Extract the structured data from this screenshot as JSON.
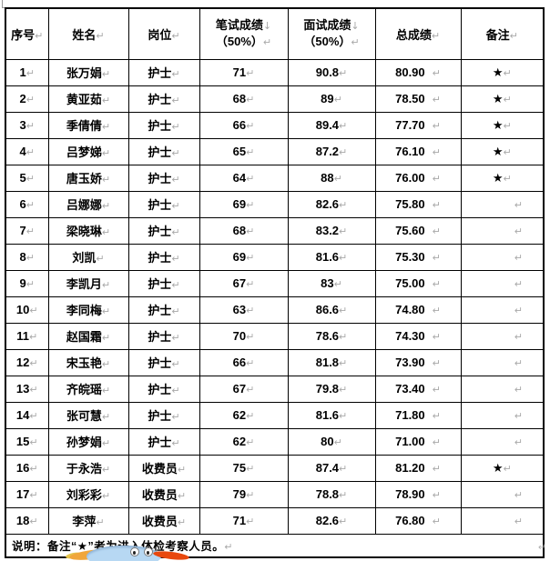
{
  "marks": {
    "paragraph": "↵",
    "line_break": "↓"
  },
  "table": {
    "header": {
      "no": "序号",
      "name": "姓名",
      "post": "岗位",
      "written_line1": "笔试成绩",
      "written_line2": "（50%）",
      "interview_line1": "面试成绩",
      "interview_line2": "（50%）",
      "total": "总成绩",
      "remark": "备注"
    },
    "rows": [
      {
        "no": "1",
        "name": "张万娟",
        "post": "护士",
        "written": "71",
        "interview": "90.8",
        "total": "80.90",
        "remark": "★"
      },
      {
        "no": "2",
        "name": "黄亚茹",
        "post": "护士",
        "written": "68",
        "interview": "89",
        "total": "78.50",
        "remark": "★"
      },
      {
        "no": "3",
        "name": "季倩倩",
        "post": "护士",
        "written": "66",
        "interview": "89.4",
        "total": "77.70",
        "remark": "★"
      },
      {
        "no": "4",
        "name": "吕梦娣",
        "post": "护士",
        "written": "65",
        "interview": "87.2",
        "total": "76.10",
        "remark": "★"
      },
      {
        "no": "5",
        "name": "唐玉娇",
        "post": "护士",
        "written": "64",
        "interview": "88",
        "total": "76.00",
        "remark": "★"
      },
      {
        "no": "6",
        "name": "吕娜娜",
        "post": "护士",
        "written": "69",
        "interview": "82.6",
        "total": "75.80",
        "remark": ""
      },
      {
        "no": "7",
        "name": "梁晓琳",
        "post": "护士",
        "written": "68",
        "interview": "83.2",
        "total": "75.60",
        "remark": ""
      },
      {
        "no": "8",
        "name": "刘凯",
        "post": "护士",
        "written": "69",
        "interview": "81.6",
        "total": "75.30",
        "remark": ""
      },
      {
        "no": "9",
        "name": "李凯月",
        "post": "护士",
        "written": "67",
        "interview": "83",
        "total": "75.00",
        "remark": ""
      },
      {
        "no": "10",
        "name": "李同梅",
        "post": "护士",
        "written": "63",
        "interview": "86.6",
        "total": "74.80",
        "remark": ""
      },
      {
        "no": "11",
        "name": "赵国霜",
        "post": "护士",
        "written": "70",
        "interview": "78.6",
        "total": "74.30",
        "remark": ""
      },
      {
        "no": "12",
        "name": "宋玉艳",
        "post": "护士",
        "written": "66",
        "interview": "81.8",
        "total": "73.90",
        "remark": ""
      },
      {
        "no": "13",
        "name": "齐皖瑶",
        "post": "护士",
        "written": "67",
        "interview": "79.8",
        "total": "73.40",
        "remark": ""
      },
      {
        "no": "14",
        "name": "张可慧",
        "post": "护士",
        "written": "62",
        "interview": "81.6",
        "total": "71.80",
        "remark": ""
      },
      {
        "no": "15",
        "name": "孙梦娟",
        "post": "护士",
        "written": "62",
        "interview": "80",
        "total": "71.00",
        "remark": ""
      },
      {
        "no": "16",
        "name": "于永浩",
        "post": "收费员",
        "written": "75",
        "interview": "87.4",
        "total": "81.20",
        "remark": "★"
      },
      {
        "no": "17",
        "name": "刘彩彩",
        "post": "收费员",
        "written": "79",
        "interview": "78.8",
        "total": "78.90",
        "remark": ""
      },
      {
        "no": "18",
        "name": "李萍",
        "post": "收费员",
        "written": "71",
        "interview": "82.6",
        "total": "76.80",
        "remark": ""
      }
    ],
    "note": "说明：备注“★”者为进入体检考察人员。"
  },
  "mascot": {
    "body_color": "#b7d8f3",
    "wing_color": "#f0a63a",
    "flame_color": "#e8480e"
  }
}
